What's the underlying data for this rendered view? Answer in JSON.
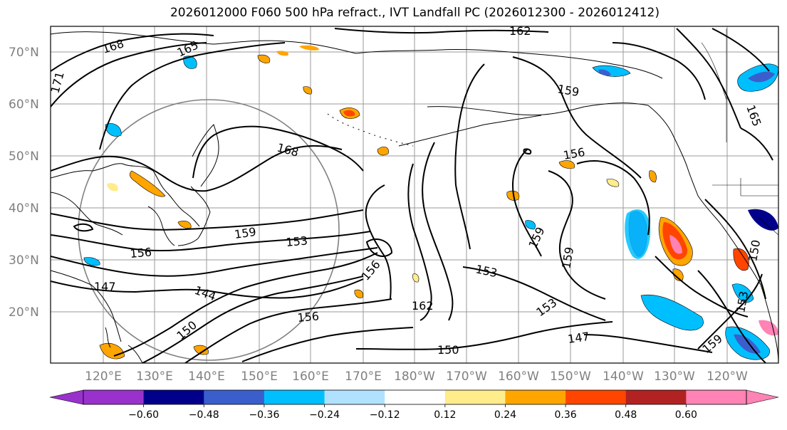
{
  "title": "2026012000 F060 500 hPa refract., IVT Landfall PC (2026012300 - 2026012412)",
  "lat_labels": [
    "70°N",
    "60°N",
    "50°N",
    "40°N",
    "30°N",
    "20°N"
  ],
  "lon_labels": [
    "120°E",
    "130°E",
    "140°E",
    "150°E",
    "160°E",
    "170°E",
    "180°W",
    "170°W",
    "160°W",
    "150°W",
    "140°W",
    "130°W",
    "120°W"
  ],
  "contour_labels": [
    "162",
    "168",
    "165",
    "171",
    "159",
    "168",
    "156",
    "159",
    "153",
    "156",
    "153",
    "159",
    "159",
    "147",
    "144",
    "156",
    "162",
    "150",
    "150",
    "147",
    "156",
    "153",
    "165",
    "153",
    "159",
    "150"
  ],
  "colorbar": {
    "ticks": [
      "−0.60",
      "−0.48",
      "−0.36",
      "−0.24",
      "−0.12",
      "0.12",
      "0.24",
      "0.36",
      "0.48",
      "0.60"
    ],
    "colors": [
      "#9932cc",
      "#00008b",
      "#3a5fcd",
      "#00bfff",
      "#b0e2ff",
      "#ffffff",
      "#ffec8b",
      "#ffa500",
      "#ff4500",
      "#b22222",
      "#ff83b4",
      "#ff83b4"
    ]
  }
}
